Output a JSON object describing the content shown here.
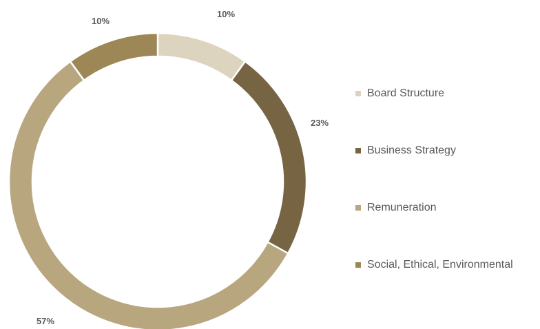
{
  "chart_data": {
    "type": "pie",
    "style": "donut",
    "title": "",
    "legend_position": "right",
    "categories": [
      "Board Structure",
      "Business Strategy",
      "Remuneration",
      "Social, Ethical, Environmental"
    ],
    "values": [
      10,
      23,
      57,
      10
    ],
    "labels": [
      "10%",
      "23%",
      "57%",
      "10%"
    ],
    "colors": [
      "#ddd4c0",
      "#766443",
      "#b8a67f",
      "#9d8757"
    ]
  }
}
